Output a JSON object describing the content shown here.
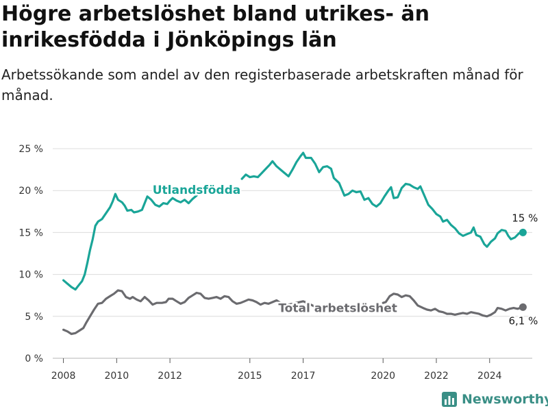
{
  "title": "Högre arbetslöshet bland utrikes- än inrikesfödda i Jönköpings län",
  "subtitle": "Arbetssökande som andel av den registerbaserade arbetskraften månad för månad.",
  "brand": {
    "name": "Newsworthy"
  },
  "colors": {
    "accent": "#1aa598",
    "total": "#6b6b6f",
    "grid": "#dcdcdc"
  },
  "chart_data": {
    "type": "line",
    "title": "",
    "xlabel": "",
    "ylabel": "",
    "ylim": [
      0,
      25
    ],
    "xlim": [
      2007.6,
      2025.6
    ],
    "grid": true,
    "yticks": [
      "0 %",
      "5 %",
      "10 %",
      "15 %",
      "20 %",
      "25 %"
    ],
    "xticks": [
      "2008",
      "2010",
      "2012",
      "2015",
      "2017",
      "2020",
      "2022",
      "2024"
    ],
    "xtick_values": [
      2008,
      2010,
      2012,
      2015,
      2017,
      2020,
      2022,
      2024
    ],
    "series": [
      {
        "name": "Utlandsfödda",
        "color": "#1aa598",
        "end_label": "15 %",
        "points": [
          [
            2008.0,
            9.3
          ],
          [
            2008.15,
            8.9
          ],
          [
            2008.3,
            8.5
          ],
          [
            2008.45,
            8.2
          ],
          [
            2008.55,
            8.6
          ],
          [
            2008.7,
            9.2
          ],
          [
            2008.8,
            10.0
          ],
          [
            2008.9,
            11.4
          ],
          [
            2009.0,
            12.9
          ],
          [
            2009.1,
            14.2
          ],
          [
            2009.2,
            15.8
          ],
          [
            2009.3,
            16.3
          ],
          [
            2009.45,
            16.6
          ],
          [
            2009.6,
            17.3
          ],
          [
            2009.75,
            18.0
          ],
          [
            2009.85,
            18.7
          ],
          [
            2009.95,
            19.6
          ],
          [
            2010.05,
            18.9
          ],
          [
            2010.2,
            18.6
          ],
          [
            2010.3,
            18.2
          ],
          [
            2010.4,
            17.6
          ],
          [
            2010.55,
            17.7
          ],
          [
            2010.65,
            17.4
          ],
          [
            2010.8,
            17.5
          ],
          [
            2010.95,
            17.7
          ],
          [
            2011.05,
            18.5
          ],
          [
            2011.15,
            19.3
          ],
          [
            2011.3,
            18.9
          ],
          [
            2011.45,
            18.3
          ],
          [
            2011.6,
            18.1
          ],
          [
            2011.75,
            18.5
          ],
          [
            2011.9,
            18.4
          ],
          [
            2012.0,
            18.8
          ],
          [
            2012.1,
            19.1
          ],
          [
            2012.25,
            18.8
          ],
          [
            2012.4,
            18.6
          ],
          [
            2012.55,
            18.9
          ],
          [
            2012.7,
            18.5
          ],
          [
            2012.85,
            19.0
          ],
          [
            2013.0,
            19.4
          ],
          [
            2014.7,
            21.4
          ],
          [
            2014.85,
            21.9
          ],
          [
            2015.0,
            21.6
          ],
          [
            2015.15,
            21.7
          ],
          [
            2015.3,
            21.6
          ],
          [
            2015.45,
            22.1
          ],
          [
            2015.6,
            22.6
          ],
          [
            2015.75,
            23.1
          ],
          [
            2015.85,
            23.5
          ],
          [
            2016.0,
            22.9
          ],
          [
            2016.15,
            22.5
          ],
          [
            2016.3,
            22.1
          ],
          [
            2016.45,
            21.7
          ],
          [
            2016.6,
            22.5
          ],
          [
            2016.75,
            23.4
          ],
          [
            2016.9,
            24.1
          ],
          [
            2017.0,
            24.5
          ],
          [
            2017.1,
            23.9
          ],
          [
            2017.3,
            23.9
          ],
          [
            2017.45,
            23.2
          ],
          [
            2017.6,
            22.2
          ],
          [
            2017.75,
            22.8
          ],
          [
            2017.9,
            22.9
          ],
          [
            2018.05,
            22.6
          ],
          [
            2018.15,
            21.5
          ],
          [
            2018.35,
            20.9
          ],
          [
            2018.55,
            19.4
          ],
          [
            2018.7,
            19.6
          ],
          [
            2018.85,
            20.0
          ],
          [
            2019.0,
            19.8
          ],
          [
            2019.15,
            19.9
          ],
          [
            2019.3,
            18.9
          ],
          [
            2019.45,
            19.1
          ],
          [
            2019.6,
            18.4
          ],
          [
            2019.75,
            18.1
          ],
          [
            2019.9,
            18.5
          ],
          [
            2020.05,
            19.3
          ],
          [
            2020.2,
            20.0
          ],
          [
            2020.3,
            20.4
          ],
          [
            2020.4,
            19.1
          ],
          [
            2020.55,
            19.2
          ],
          [
            2020.7,
            20.3
          ],
          [
            2020.85,
            20.8
          ],
          [
            2021.0,
            20.7
          ],
          [
            2021.15,
            20.4
          ],
          [
            2021.3,
            20.2
          ],
          [
            2021.4,
            20.5
          ],
          [
            2021.55,
            19.4
          ],
          [
            2021.7,
            18.3
          ],
          [
            2021.85,
            17.8
          ],
          [
            2022.0,
            17.2
          ],
          [
            2022.15,
            16.9
          ],
          [
            2022.25,
            16.3
          ],
          [
            2022.4,
            16.5
          ],
          [
            2022.55,
            15.9
          ],
          [
            2022.7,
            15.5
          ],
          [
            2022.85,
            14.9
          ],
          [
            2023.0,
            14.6
          ],
          [
            2023.15,
            14.8
          ],
          [
            2023.3,
            15.0
          ],
          [
            2023.4,
            15.6
          ],
          [
            2023.5,
            14.7
          ],
          [
            2023.65,
            14.5
          ],
          [
            2023.8,
            13.6
          ],
          [
            2023.9,
            13.3
          ],
          [
            2024.05,
            13.9
          ],
          [
            2024.2,
            14.3
          ],
          [
            2024.3,
            14.9
          ],
          [
            2024.45,
            15.3
          ],
          [
            2024.6,
            15.2
          ],
          [
            2024.7,
            14.6
          ],
          [
            2024.8,
            14.2
          ],
          [
            2024.95,
            14.4
          ],
          [
            2025.1,
            14.9
          ],
          [
            2025.25,
            15.0
          ]
        ]
      },
      {
        "name": "Total arbetslöshet",
        "color": "#6b6b6f",
        "end_label": "6,1 %",
        "points": [
          [
            2008.0,
            3.4
          ],
          [
            2008.15,
            3.2
          ],
          [
            2008.3,
            2.9
          ],
          [
            2008.45,
            3.0
          ],
          [
            2008.6,
            3.3
          ],
          [
            2008.75,
            3.6
          ],
          [
            2008.85,
            4.2
          ],
          [
            2009.0,
            5.0
          ],
          [
            2009.15,
            5.8
          ],
          [
            2009.3,
            6.5
          ],
          [
            2009.45,
            6.6
          ],
          [
            2009.6,
            7.1
          ],
          [
            2009.75,
            7.4
          ],
          [
            2009.9,
            7.7
          ],
          [
            2010.05,
            8.1
          ],
          [
            2010.2,
            8.0
          ],
          [
            2010.35,
            7.3
          ],
          [
            2010.5,
            7.1
          ],
          [
            2010.6,
            7.3
          ],
          [
            2010.75,
            7.0
          ],
          [
            2010.9,
            6.8
          ],
          [
            2011.05,
            7.3
          ],
          [
            2011.2,
            6.9
          ],
          [
            2011.35,
            6.4
          ],
          [
            2011.5,
            6.6
          ],
          [
            2011.7,
            6.6
          ],
          [
            2011.85,
            6.7
          ],
          [
            2011.95,
            7.1
          ],
          [
            2012.1,
            7.1
          ],
          [
            2012.25,
            6.8
          ],
          [
            2012.4,
            6.5
          ],
          [
            2012.55,
            6.7
          ],
          [
            2012.7,
            7.2
          ],
          [
            2012.85,
            7.5
          ],
          [
            2013.0,
            7.8
          ],
          [
            2013.15,
            7.7
          ],
          [
            2013.3,
            7.2
          ],
          [
            2013.45,
            7.1
          ],
          [
            2013.6,
            7.2
          ],
          [
            2013.75,
            7.3
          ],
          [
            2013.9,
            7.1
          ],
          [
            2014.05,
            7.4
          ],
          [
            2014.2,
            7.3
          ],
          [
            2014.35,
            6.8
          ],
          [
            2014.5,
            6.5
          ],
          [
            2014.65,
            6.6
          ],
          [
            2014.8,
            6.8
          ],
          [
            2014.95,
            7.0
          ],
          [
            2015.1,
            6.9
          ],
          [
            2015.25,
            6.7
          ],
          [
            2015.4,
            6.4
          ],
          [
            2015.55,
            6.6
          ],
          [
            2015.7,
            6.5
          ],
          [
            2015.85,
            6.7
          ],
          [
            2016.0,
            6.9
          ],
          [
            2016.15,
            6.6
          ],
          [
            2016.3,
            6.2
          ],
          [
            2016.45,
            6.4
          ],
          [
            2016.6,
            6.5
          ],
          [
            2017.0,
            6.8
          ],
          [
            2017.15,
            6.6
          ],
          [
            2017.35,
            6.3
          ],
          [
            2017.55,
            6.0
          ],
          [
            2020.0,
            6.6
          ],
          [
            2020.1,
            6.7
          ],
          [
            2020.25,
            7.4
          ],
          [
            2020.4,
            7.7
          ],
          [
            2020.55,
            7.6
          ],
          [
            2020.7,
            7.3
          ],
          [
            2020.85,
            7.5
          ],
          [
            2021.0,
            7.4
          ],
          [
            2021.15,
            6.9
          ],
          [
            2021.3,
            6.3
          ],
          [
            2021.5,
            6.0
          ],
          [
            2021.65,
            5.8
          ],
          [
            2021.8,
            5.7
          ],
          [
            2021.95,
            5.9
          ],
          [
            2022.1,
            5.6
          ],
          [
            2022.25,
            5.5
          ],
          [
            2022.4,
            5.3
          ],
          [
            2022.55,
            5.3
          ],
          [
            2022.7,
            5.2
          ],
          [
            2022.85,
            5.3
          ],
          [
            2023.0,
            5.4
          ],
          [
            2023.15,
            5.3
          ],
          [
            2023.3,
            5.5
          ],
          [
            2023.45,
            5.4
          ],
          [
            2023.6,
            5.3
          ],
          [
            2023.75,
            5.1
          ],
          [
            2023.9,
            5.0
          ],
          [
            2024.05,
            5.2
          ],
          [
            2024.2,
            5.5
          ],
          [
            2024.3,
            6.0
          ],
          [
            2024.45,
            5.9
          ],
          [
            2024.6,
            5.7
          ],
          [
            2024.75,
            5.9
          ],
          [
            2024.9,
            6.0
          ],
          [
            2025.05,
            5.9
          ],
          [
            2025.25,
            6.1
          ]
        ]
      }
    ]
  }
}
